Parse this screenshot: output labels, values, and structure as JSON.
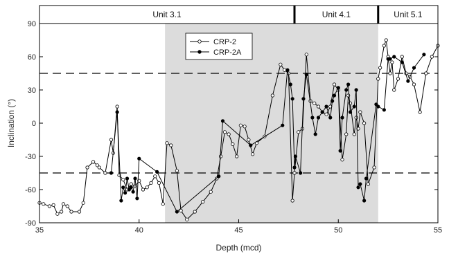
{
  "chart_data": {
    "type": "line",
    "xlabel": "Depth (mcd)",
    "ylabel": "Inclination (°)",
    "xlim": [
      35,
      55
    ],
    "ylim": [
      -90,
      90
    ],
    "x_ticks": [
      35,
      40,
      45,
      50,
      55
    ],
    "y_ticks": [
      -90,
      -60,
      -30,
      0,
      30,
      60,
      90
    ],
    "grid": false,
    "reference_lines_y": [
      45,
      -45
    ],
    "shaded_interval_x": [
      41.3,
      52.0
    ],
    "units": [
      {
        "label": "Unit 3.1",
        "from": 35,
        "to": 47.8
      },
      {
        "label": "Unit 4.1",
        "from": 47.8,
        "to": 52.0
      },
      {
        "label": "Unit 5.1",
        "from": 52.0,
        "to": 55
      }
    ],
    "legend_position": "top-left-inset",
    "series": [
      {
        "name": "CRP-2",
        "marker": "open-circle",
        "x": [
          35.0,
          35.2,
          35.5,
          35.7,
          35.9,
          36.1,
          36.2,
          36.4,
          36.6,
          37.0,
          37.2,
          37.4,
          37.7,
          37.9,
          38.0,
          38.3,
          38.6,
          38.7,
          38.9,
          39.0,
          39.2,
          39.4,
          39.6,
          39.8,
          40.0,
          40.2,
          40.4,
          40.6,
          40.8,
          41.0,
          41.2,
          41.4,
          41.6,
          41.9,
          42.1,
          42.4,
          42.8,
          43.2,
          43.6,
          43.9,
          44.1,
          44.3,
          44.5,
          44.7,
          44.9,
          45.1,
          45.3,
          45.5,
          45.7,
          45.9,
          46.3,
          46.7,
          47.1,
          47.3,
          47.5,
          47.7,
          47.8,
          48.0,
          48.2,
          48.4,
          48.6,
          48.8,
          49.0,
          49.2,
          49.4,
          49.6,
          49.8,
          50.0,
          50.2,
          50.4,
          50.5,
          50.6,
          50.8,
          50.9,
          51.0,
          51.1,
          51.3,
          51.5,
          51.8,
          52.0,
          52.1,
          52.3,
          52.4,
          52.5,
          52.6,
          52.7,
          52.8,
          53.0,
          53.2,
          53.4,
          53.6,
          53.8,
          54.1,
          54.4,
          54.7,
          55.0
        ],
        "y": [
          -72,
          -73,
          -75,
          -74,
          -82,
          -80,
          -73,
          -75,
          -80,
          -80,
          -72,
          -40,
          -35,
          -38,
          -40,
          -45,
          -15,
          -27,
          15,
          -47,
          -51,
          -60,
          -55,
          -57,
          -52,
          -60,
          -58,
          -54,
          -48,
          -54,
          -73,
          -18,
          -20,
          -43,
          -79,
          -87,
          -80,
          -71,
          -62,
          -50,
          -30,
          -8,
          -10,
          -19,
          -30,
          -2,
          -3,
          -15,
          -28,
          -18,
          -12,
          25,
          53,
          48,
          45,
          -70,
          -45,
          -8,
          -5,
          62,
          20,
          18,
          15,
          10,
          8,
          15,
          35,
          30,
          -33,
          -10,
          25,
          18,
          -10,
          5,
          -5,
          10,
          0,
          -55,
          -40,
          40,
          50,
          70,
          75,
          60,
          45,
          55,
          30,
          40,
          60,
          45,
          42,
          35,
          10,
          45,
          60,
          70
        ]
      },
      {
        "name": "CRP-2A",
        "marker": "filled-circle",
        "x": [
          38.6,
          38.9,
          39.1,
          39.2,
          39.3,
          39.4,
          39.5,
          39.6,
          39.7,
          39.8,
          39.9,
          40.0,
          40.9,
          41.9,
          44.0,
          44.2,
          45.6,
          47.2,
          47.45,
          47.6,
          47.7,
          47.8,
          47.85,
          48.1,
          48.25,
          48.4,
          48.7,
          48.85,
          49.0,
          49.2,
          49.4,
          49.6,
          49.7,
          49.8,
          50.0,
          50.1,
          50.2,
          50.4,
          50.5,
          50.6,
          50.8,
          50.9,
          51.0,
          51.1,
          51.3,
          51.4,
          51.9,
          52.0,
          52.3,
          52.5,
          52.6,
          52.8,
          53.2,
          53.5,
          53.8,
          54.3
        ],
        "y": [
          -45,
          10,
          -70,
          -58,
          -63,
          -50,
          -60,
          -58,
          -62,
          -50,
          -68,
          -32,
          -44,
          -80,
          -48,
          2,
          -20,
          -2,
          48,
          35,
          22,
          -40,
          -30,
          -45,
          22,
          44,
          5,
          -10,
          5,
          10,
          15,
          5,
          20,
          25,
          32,
          -25,
          5,
          30,
          35,
          10,
          15,
          30,
          -58,
          -55,
          -70,
          -50,
          17,
          15,
          12,
          58,
          58,
          60,
          55,
          38,
          50,
          62
        ]
      }
    ]
  }
}
